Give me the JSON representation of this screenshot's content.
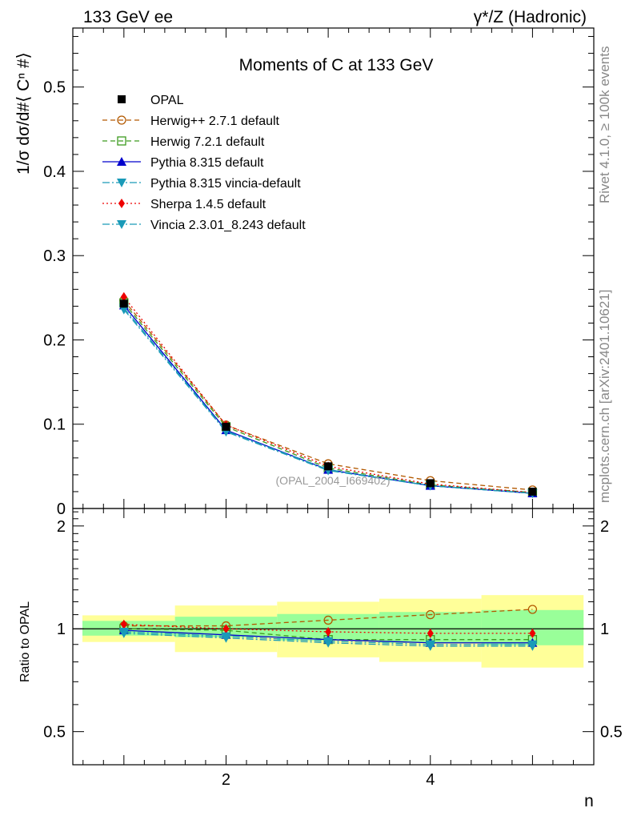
{
  "header": {
    "left": "133 GeV ee",
    "right": "γ*/Z (Hadronic)"
  },
  "side_labels": {
    "rivet": "Rivet 4.1.0, ≥ 100k events",
    "mcplots": "mcplots.cern.ch [arXiv:2401.10621]"
  },
  "watermark": "(OPAL_2004_I669402)",
  "chart_data": [
    {
      "type": "line",
      "title": "Moments of C at 133 GeV",
      "ylabel": "1/σ  dσ/d#⟨ Cⁿ #⟩",
      "xlabel": "n",
      "xlim": [
        0.5,
        5.6
      ],
      "ylim": [
        0,
        0.57
      ],
      "yticks": [
        0,
        0.1,
        0.2,
        0.3,
        0.4,
        0.5
      ],
      "ytick_labels": [
        "0",
        "0.1",
        "0.2",
        "0.3",
        "0.4",
        "0.5"
      ],
      "x": [
        1,
        2,
        3,
        4,
        5
      ],
      "data": {
        "name": "OPAL",
        "values": [
          0.243,
          0.097,
          0.05,
          0.03,
          0.02
        ]
      },
      "series": [
        {
          "name": "Herwig++ 2.7.1 default",
          "color": "#b35900",
          "dash": "6,4",
          "marker": "circle-open",
          "values": [
            0.247,
            0.099,
            0.053,
            0.033,
            0.022
          ]
        },
        {
          "name": "Herwig 7.2.1 default",
          "color": "#3c9a1e",
          "dash": "6,4",
          "marker": "square-open",
          "values": [
            0.244,
            0.097,
            0.048,
            0.028,
            0.019
          ]
        },
        {
          "name": "Pythia 8.315 default",
          "color": "#0000cc",
          "dash": "",
          "marker": "triangle-up",
          "values": [
            0.241,
            0.093,
            0.046,
            0.027,
            0.018
          ]
        },
        {
          "name": "Pythia 8.315 vincia-default",
          "color": "#1a9ab8",
          "dash": "9,3,2,3",
          "marker": "triangle-down",
          "values": [
            0.236,
            0.091,
            0.045,
            0.027,
            0.018
          ]
        },
        {
          "name": "Sherpa 1.4.5 default",
          "color": "#ee0000",
          "dash": "2,3",
          "marker": "diamond",
          "values": [
            0.251,
            0.099,
            0.05,
            0.029,
            0.019
          ]
        },
        {
          "name": "Vincia 2.3.01_8.243 default",
          "color": "#1a9ab8",
          "dash": "9,3,2,3",
          "marker": "triangle-down",
          "values": [
            0.238,
            0.092,
            0.046,
            0.027,
            0.018
          ]
        }
      ]
    },
    {
      "type": "line",
      "ylabel": "Ratio to OPAL",
      "xlabel": "n",
      "xlim": [
        0.5,
        5.6
      ],
      "ylim": [
        0.4,
        2.25
      ],
      "yscale": "log",
      "yticks": [
        0.5,
        1,
        2
      ],
      "ytick_labels": [
        "0.5",
        "1",
        "2"
      ],
      "xticks": [
        2,
        4
      ],
      "xtick_labels": [
        "2",
        "4"
      ],
      "reference": 1,
      "bands": {
        "bins": [
          [
            0.5,
            1.5
          ],
          [
            1.5,
            2.5
          ],
          [
            2.5,
            3.5
          ],
          [
            3.5,
            4.5
          ],
          [
            4.5,
            5.5
          ]
        ],
        "green_lo": [
          0.955,
          0.945,
          0.925,
          0.91,
          0.895
        ],
        "green_hi": [
          1.055,
          1.085,
          1.105,
          1.12,
          1.135
        ],
        "yellow_lo": [
          0.915,
          0.855,
          0.825,
          0.8,
          0.77
        ],
        "yellow_hi": [
          1.095,
          1.17,
          1.2,
          1.225,
          1.255
        ]
      },
      "series": [
        {
          "name": "Herwig++ 2.7.1 default",
          "values": [
            1.02,
            1.02,
            1.06,
            1.1,
            1.14
          ]
        },
        {
          "name": "Herwig 7.2.1 default",
          "values": [
            1.0,
            0.99,
            0.93,
            0.93,
            0.93
          ]
        },
        {
          "name": "Pythia 8.315 default",
          "values": [
            0.99,
            0.96,
            0.93,
            0.91,
            0.91
          ]
        },
        {
          "name": "Pythia 8.315 vincia-default",
          "values": [
            0.97,
            0.94,
            0.91,
            0.89,
            0.89
          ]
        },
        {
          "name": "Sherpa 1.4.5 default",
          "values": [
            1.03,
            1.0,
            0.98,
            0.97,
            0.97
          ]
        },
        {
          "name": "Vincia 2.3.01_8.243 default",
          "values": [
            0.98,
            0.95,
            0.92,
            0.9,
            0.9
          ]
        }
      ]
    }
  ]
}
